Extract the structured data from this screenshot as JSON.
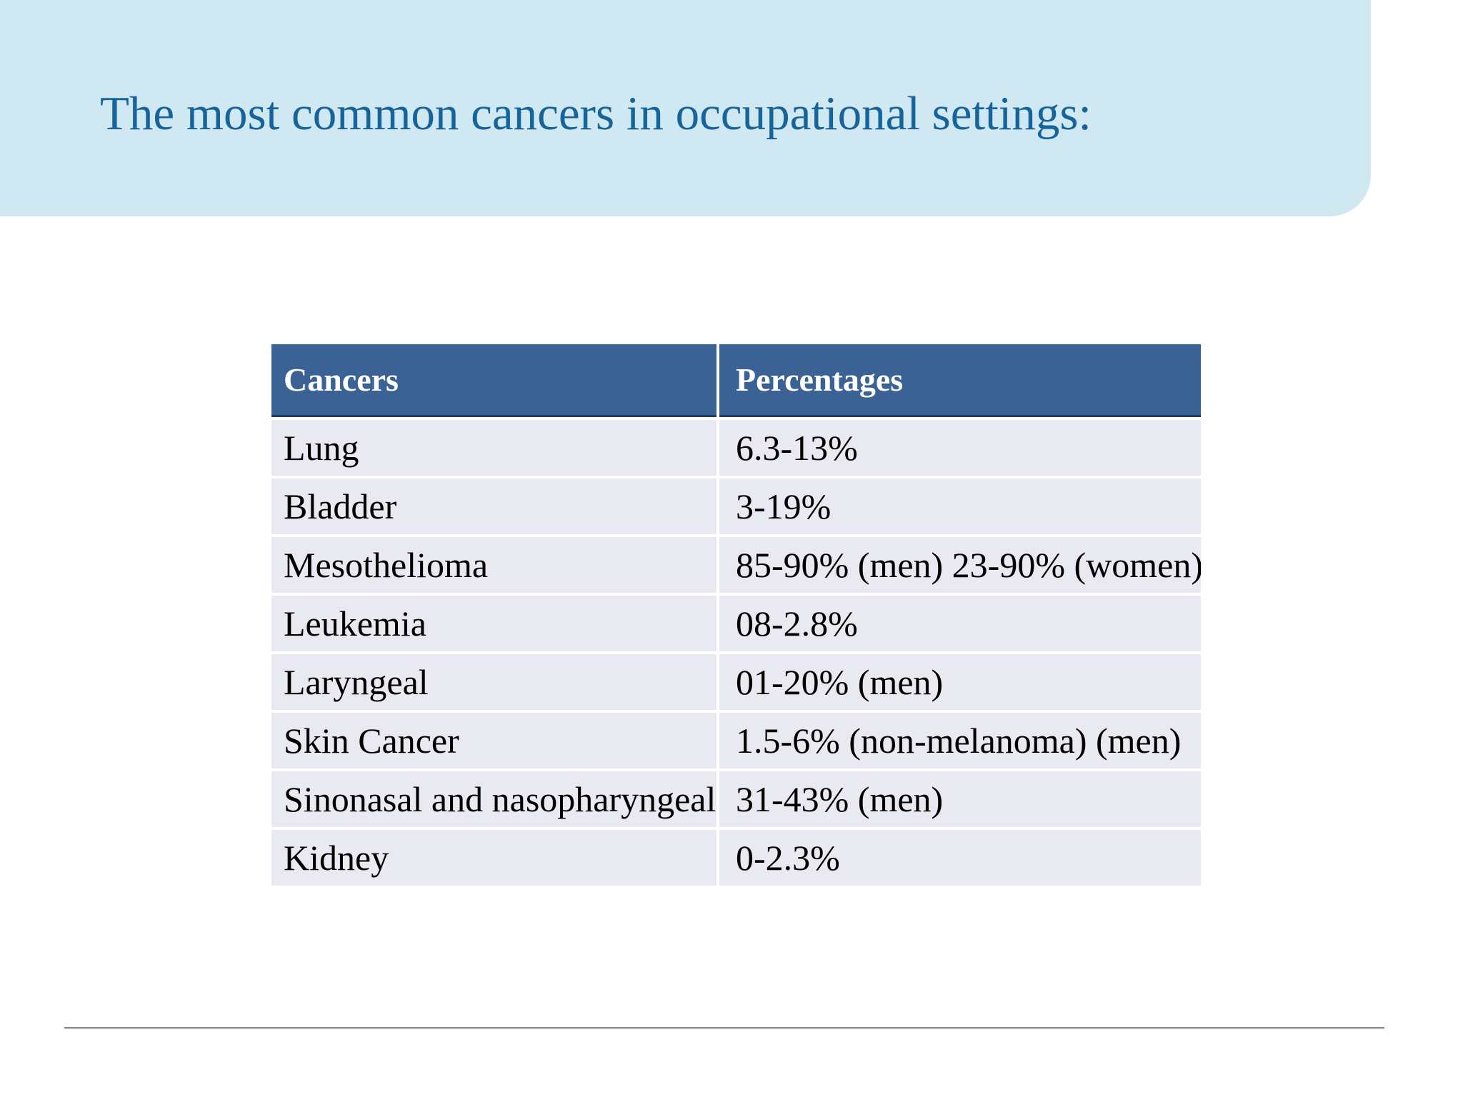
{
  "slide": {
    "title": "The most common cancers in occupational settings:",
    "colors": {
      "band_background": "#d0e8f2",
      "title_text": "#17639c",
      "table_header_background": "#3b6295",
      "table_header_border": "#1e3a66",
      "table_row_background": "#e9eaf1",
      "footer_line": "#8a8791"
    }
  },
  "table": {
    "headers": [
      "Cancers",
      "Percentages"
    ],
    "rows": [
      [
        "Lung",
        "6.3-13%"
      ],
      [
        "Bladder",
        "3-19%"
      ],
      [
        "Mesothelioma",
        "85-90% (men) 23-90% (women)"
      ],
      [
        "Leukemia",
        "08-2.8%"
      ],
      [
        "Laryngeal",
        "01-20% (men)"
      ],
      [
        "Skin Cancer",
        "1.5-6% (non-melanoma) (men)"
      ],
      [
        "Sinonasal and nasopharyngeal",
        "31-43% (men)"
      ],
      [
        "Kidney",
        "0-2.3%"
      ]
    ]
  }
}
